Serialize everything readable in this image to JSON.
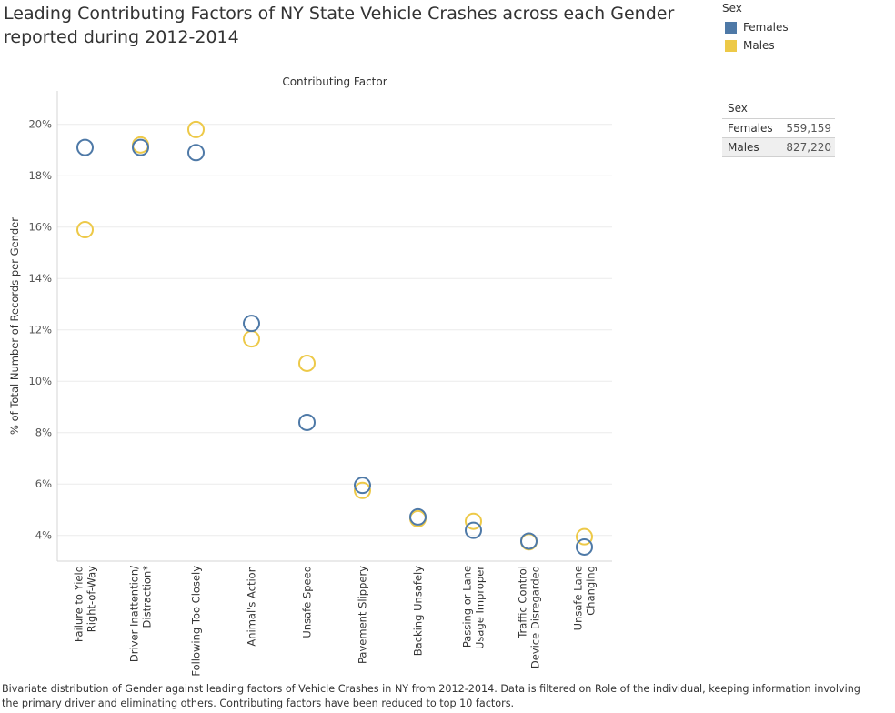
{
  "title": "Leading Contributing Factors of NY State Vehicle Crashes across each Gender reported during 2012-2014",
  "legend": {
    "title": "Sex",
    "items": [
      {
        "label": "Females",
        "color": "#4e79a7"
      },
      {
        "label": "Males",
        "color": "#edc948"
      }
    ]
  },
  "summary": {
    "title": "Sex",
    "rows": [
      {
        "label": "Females",
        "value": "559,159"
      },
      {
        "label": "Males",
        "value": "827,220"
      }
    ]
  },
  "footer": "Bivariate distribution of Gender against leading factors of Vehicle Crashes in NY from 2012-2014. Data is filtered on Role of the individual, keeping information involving the primary driver and eliminating others. Contributing factors have been reduced to top 10 factors.",
  "chart_data": {
    "type": "scatter",
    "title": "Leading Contributing Factors of NY State Vehicle Crashes across each Gender reported during 2012-2014",
    "xlabel": "Contributing Factor",
    "ylabel": "% of Total Number of Records per Gender",
    "categories": [
      [
        "Failure to Yield",
        "Right-of-Way"
      ],
      [
        "Driver Inattention/",
        "Distraction*"
      ],
      [
        "Following Too Closely"
      ],
      [
        "Animal's Action"
      ],
      [
        "Unsafe Speed"
      ],
      [
        "Pavement Slippery"
      ],
      [
        "Backing Unsafely"
      ],
      [
        "Passing or Lane",
        "Usage Improper"
      ],
      [
        "Traffic Control",
        "Device Disregarded"
      ],
      [
        "Unsafe Lane",
        "Changing"
      ]
    ],
    "yticks": [
      "4%",
      "6%",
      "8%",
      "10%",
      "12%",
      "14%",
      "16%",
      "18%",
      "20%"
    ],
    "ylim": [
      3.0,
      21.3
    ],
    "grid": true,
    "legend_position": "top-right",
    "series": [
      {
        "name": "Males",
        "color": "#edc948",
        "values": [
          15.9,
          19.2,
          19.8,
          11.65,
          10.7,
          5.75,
          4.65,
          4.55,
          3.75,
          3.95
        ]
      },
      {
        "name": "Females",
        "color": "#4e79a7",
        "values": [
          19.1,
          19.1,
          18.9,
          12.25,
          8.4,
          5.95,
          4.72,
          4.2,
          3.78,
          3.55
        ]
      }
    ]
  }
}
